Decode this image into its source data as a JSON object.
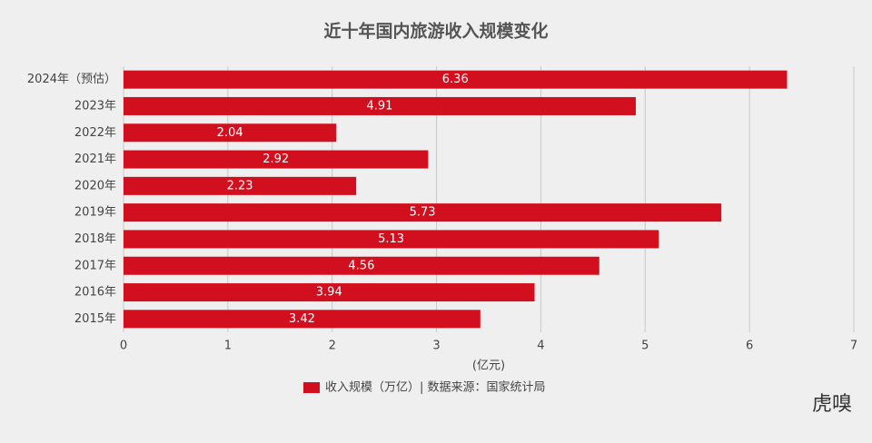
{
  "chart_data": {
    "type": "bar",
    "orientation": "horizontal",
    "title": "近十年国内旅游收入规模变化",
    "categories": [
      "2024年（预估）",
      "2023年",
      "2022年",
      "2021年",
      "2020年",
      "2019年",
      "2018年",
      "2017年",
      "2016年",
      "2015年"
    ],
    "series": [
      {
        "name": "收入规模（万亿）| 数据来源：国家统计局",
        "color": "#d20f1e",
        "values": [
          6.36,
          4.91,
          2.04,
          2.92,
          2.23,
          5.73,
          5.13,
          4.56,
          3.94,
          3.42
        ]
      }
    ],
    "xlim": [
      0,
      7
    ],
    "xticks": [
      0,
      1,
      2,
      3,
      4,
      5,
      6,
      7
    ],
    "xlabel": "(亿元)",
    "grid": true,
    "watermark": "虎嗅"
  }
}
